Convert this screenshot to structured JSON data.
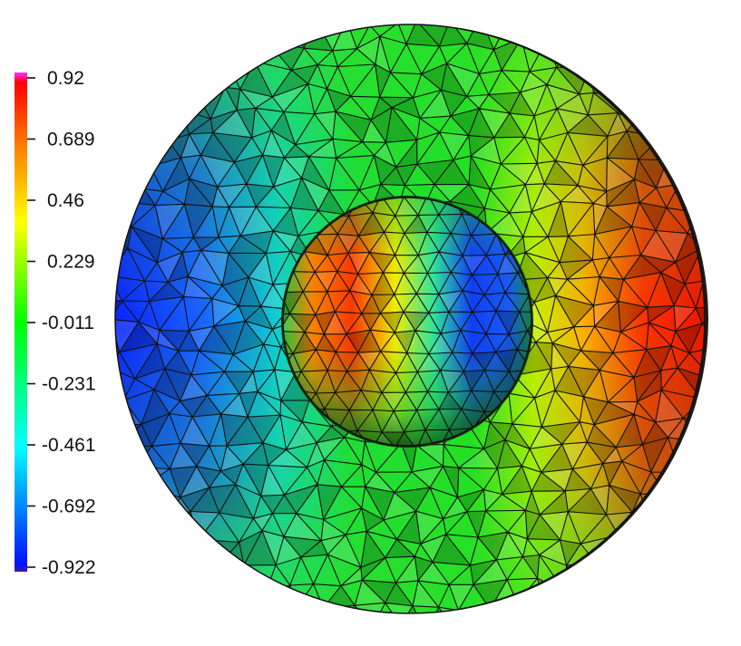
{
  "colorbar": {
    "ticks": [
      {
        "value": 0.92,
        "label": "0.92"
      },
      {
        "value": 0.689,
        "label": "0.689"
      },
      {
        "value": 0.46,
        "label": "0.46"
      },
      {
        "value": 0.229,
        "label": "0.229"
      },
      {
        "value": -0.011,
        "label": "-0.011"
      },
      {
        "value": -0.231,
        "label": "-0.231"
      },
      {
        "value": -0.461,
        "label": "-0.461"
      },
      {
        "value": -0.692,
        "label": "-0.692"
      },
      {
        "value": -0.922,
        "label": "-0.922"
      }
    ],
    "range": [
      -0.922,
      0.92
    ],
    "colormap": [
      "#3a1fa8",
      "#0010ff",
      "#00ffff",
      "#00ff00",
      "#ffff00",
      "#ff8000",
      "#ff0000",
      "#ff30ff"
    ]
  },
  "field": {
    "outer_left_value": -0.92,
    "outer_right_value": 0.92,
    "sphere_left_value": 0.8,
    "sphere_right_value": -0.9,
    "mesh_edge_color": "#111111"
  }
}
